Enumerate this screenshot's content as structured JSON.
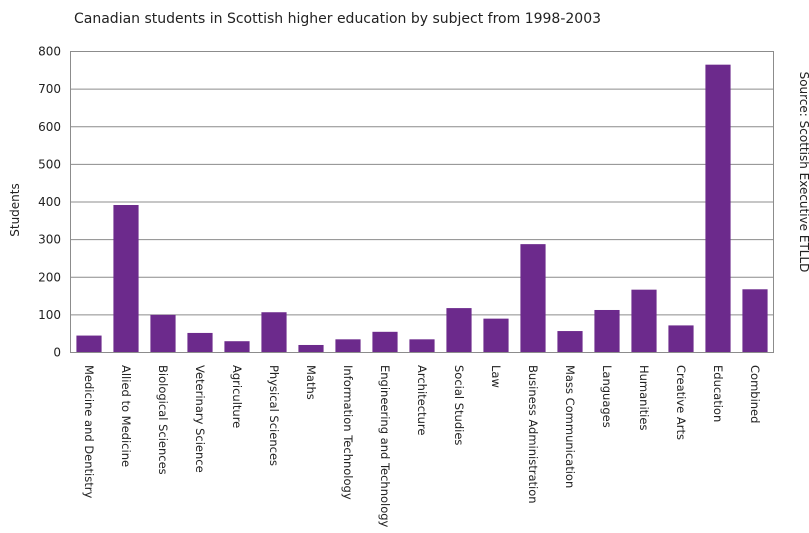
{
  "chart_data": {
    "type": "bar",
    "title": "Canadian students in Scottish higher education by subject from 1998-2003",
    "ylabel": "Students",
    "xlabel": "",
    "source": "Source: Scottish Executive ETLLD",
    "ylim": [
      0,
      800
    ],
    "yticks": [
      0,
      100,
      200,
      300,
      400,
      500,
      600,
      700,
      800
    ],
    "grid": true,
    "bar_color": "#6c2a8c",
    "categories": [
      "Medicine and Dentistry",
      "Allied to Medicine",
      "Biological Sciences",
      "Veterinary Science",
      "Agriculture",
      "Physical Sciences",
      "Maths",
      "Information Technology",
      "Engineering and Technology",
      "Architecture",
      "Social Studies",
      "Law",
      "Business Administration",
      "Mass Communication",
      "Languages",
      "Humanities",
      "Creative Arts",
      "Education",
      "Combined"
    ],
    "values": [
      45,
      392,
      100,
      52,
      30,
      107,
      20,
      35,
      55,
      35,
      118,
      90,
      288,
      57,
      113,
      167,
      72,
      765,
      168
    ]
  }
}
